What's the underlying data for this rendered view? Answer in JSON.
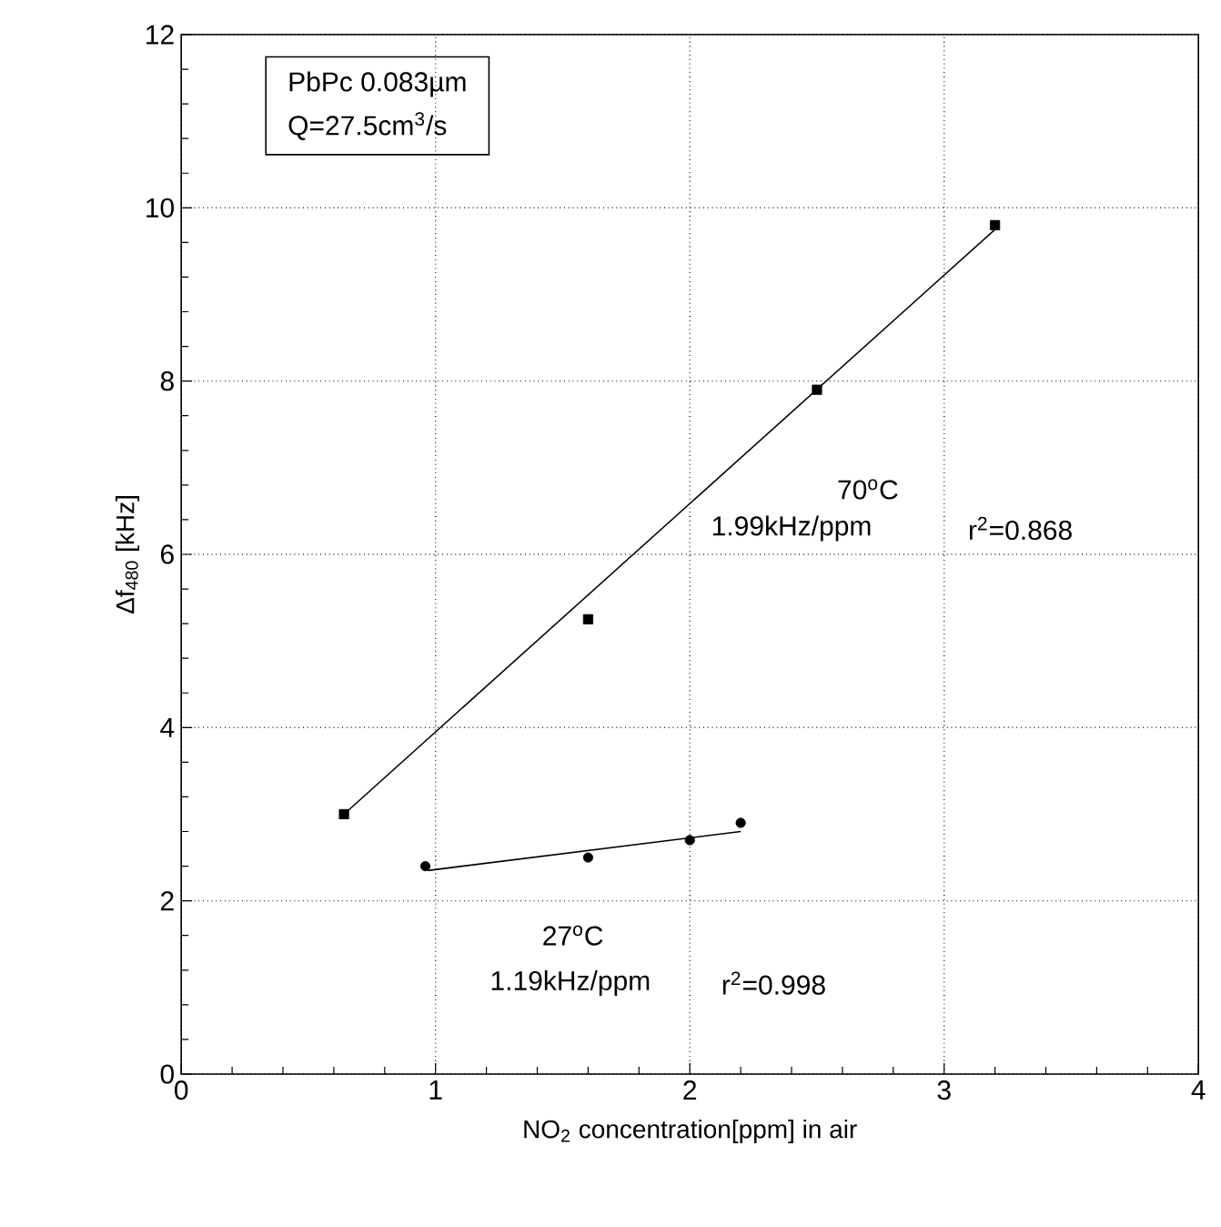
{
  "chart_data": {
    "type": "scatter",
    "xlabel": "NO$_{2}$ concentration[ppm] in air",
    "ylabel": "Δf$_{480}$ [kHz]",
    "xlim": [
      0,
      4
    ],
    "ylim": [
      0,
      12
    ],
    "xticks": [
      0,
      1,
      2,
      3,
      4
    ],
    "yticks": [
      0,
      2,
      4,
      6,
      8,
      10,
      12
    ],
    "grid": true,
    "series": [
      {
        "marker": "square",
        "color": "#000000",
        "x": [
          0.64,
          1.6,
          2.5,
          3.2
        ],
        "values": [
          3.0,
          5.25,
          7.9,
          9.8
        ]
      },
      {
        "type": "line",
        "marker": "none",
        "color": "#000000",
        "x": [
          0.64,
          3.2
        ],
        "values": [
          3.0,
          9.75
        ]
      },
      {
        "marker": "circle",
        "color": "#000000",
        "x": [
          0.96,
          1.6,
          2.0,
          2.2
        ],
        "values": [
          2.4,
          2.5,
          2.7,
          2.9
        ]
      },
      {
        "type": "line",
        "marker": "none",
        "color": "#000000",
        "x": [
          0.97,
          2.2
        ],
        "values": [
          2.35,
          2.8
        ]
      }
    ],
    "annotations": [
      "PbPc  0.083µm",
      "Q=27.5cm$^{3}$/s",
      "70$^{o}$C",
      "1.99kHz/ppm",
      "r$^{2}$=0.868",
      "27$^{o}$C",
      "1.19kHz/ppm",
      "r$^{2}$=0.998"
    ]
  }
}
